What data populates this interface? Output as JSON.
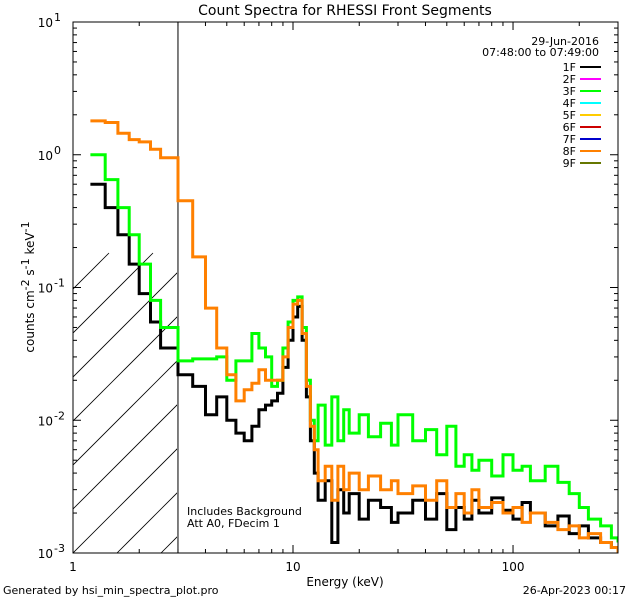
{
  "chart_data": {
    "type": "line",
    "title": "Count Spectra for RHESSI Front Segments",
    "xlabel": "Energy (keV)",
    "ylabel": "counts cm",
    "ylabel_sup1": "-2",
    "ylabel_mid": " s",
    "ylabel_sup2": "-1",
    "ylabel_end": " keV",
    "ylabel_sup3": "-1",
    "xscale": "log",
    "yscale": "log",
    "xlim": [
      1,
      300
    ],
    "ylim": [
      0.001,
      10
    ],
    "x_ticks": [
      {
        "value": 1,
        "label": "1"
      },
      {
        "value": 10,
        "label": "10"
      },
      {
        "value": 100,
        "label": "100"
      }
    ],
    "y_ticks": [
      {
        "value": 0.001,
        "base": "10",
        "exp": "-3"
      },
      {
        "value": 0.01,
        "base": "10",
        "exp": "-2"
      },
      {
        "value": 0.1,
        "base": "10",
        "exp": "-1"
      },
      {
        "value": 1,
        "base": "10",
        "exp": "0"
      },
      {
        "value": 10,
        "base": "10",
        "exp": "1"
      }
    ],
    "date": "29-Jun-2016",
    "time_range": "07:48:00 to 07:49:00",
    "excluded_region_max_keV": 3,
    "annotations": [
      "Includes Background",
      "Att A0, FDecim 1"
    ],
    "legend": [
      {
        "label": "1F",
        "color": "#000000"
      },
      {
        "label": "2F",
        "color": "#ff00ff"
      },
      {
        "label": "3F",
        "color": "#00ff00"
      },
      {
        "label": "4F",
        "color": "#00ffff"
      },
      {
        "label": "5F",
        "color": "#ffcc00"
      },
      {
        "label": "6F",
        "color": "#cc0000"
      },
      {
        "label": "7F",
        "color": "#0000cc"
      },
      {
        "label": "8F",
        "color": "#ff8000"
      },
      {
        "label": "9F",
        "color": "#667700"
      }
    ],
    "series": [
      {
        "name": "1F",
        "color": "#000000",
        "points": [
          [
            1.2,
            0.6
          ],
          [
            1.4,
            0.4
          ],
          [
            1.6,
            0.25
          ],
          [
            1.8,
            0.15
          ],
          [
            2.0,
            0.09
          ],
          [
            2.25,
            0.055
          ],
          [
            2.5,
            0.035
          ],
          [
            3.0,
            0.022
          ],
          [
            3.5,
            0.018
          ],
          [
            4.0,
            0.011
          ],
          [
            4.5,
            0.015
          ],
          [
            5.0,
            0.01
          ],
          [
            5.5,
            0.008
          ],
          [
            6.0,
            0.007
          ],
          [
            6.5,
            0.009
          ],
          [
            7.0,
            0.012
          ],
          [
            7.5,
            0.013
          ],
          [
            8.0,
            0.014
          ],
          [
            8.5,
            0.016
          ],
          [
            9.0,
            0.025
          ],
          [
            9.5,
            0.04
          ],
          [
            10.0,
            0.06
          ],
          [
            10.5,
            0.072
          ],
          [
            11.0,
            0.04
          ],
          [
            11.5,
            0.015
          ],
          [
            12.0,
            0.007
          ],
          [
            12.5,
            0.004
          ],
          [
            13.0,
            0.0025
          ],
          [
            14.0,
            0.0035
          ],
          [
            15.0,
            0.0012
          ],
          [
            16.0,
            0.003
          ],
          [
            17.0,
            0.002
          ],
          [
            18.0,
            0.0028
          ],
          [
            20.0,
            0.0018
          ],
          [
            22.0,
            0.0025
          ],
          [
            25.0,
            0.0022
          ],
          [
            28.0,
            0.0017
          ],
          [
            30.0,
            0.002
          ],
          [
            35.0,
            0.0025
          ],
          [
            40.0,
            0.0018
          ],
          [
            45.0,
            0.0028
          ],
          [
            50.0,
            0.0015
          ],
          [
            55.0,
            0.0022
          ],
          [
            60.0,
            0.0018
          ],
          [
            65.0,
            0.0025
          ],
          [
            70.0,
            0.002
          ],
          [
            80.0,
            0.0026
          ],
          [
            90.0,
            0.0021
          ],
          [
            100.0,
            0.0018
          ],
          [
            110.0,
            0.0024
          ],
          [
            120.0,
            0.002
          ],
          [
            140.0,
            0.0016
          ],
          [
            160.0,
            0.0019
          ],
          [
            180.0,
            0.0014
          ],
          [
            200.0,
            0.0016
          ],
          [
            220.0,
            0.0013
          ],
          [
            250.0,
            0.0012
          ],
          [
            280.0,
            0.0011
          ],
          [
            300.0,
            0.001
          ]
        ]
      },
      {
        "name": "3F",
        "color": "#00ff00",
        "points": [
          [
            1.2,
            1.0
          ],
          [
            1.4,
            0.65
          ],
          [
            1.6,
            0.4
          ],
          [
            1.8,
            0.25
          ],
          [
            2.0,
            0.15
          ],
          [
            2.25,
            0.08
          ],
          [
            2.5,
            0.05
          ],
          [
            3.0,
            0.028
          ],
          [
            3.5,
            0.029
          ],
          [
            4.0,
            0.029
          ],
          [
            4.5,
            0.03
          ],
          [
            5.0,
            0.02
          ],
          [
            5.5,
            0.028
          ],
          [
            6.0,
            0.028
          ],
          [
            6.5,
            0.045
          ],
          [
            7.0,
            0.035
          ],
          [
            7.5,
            0.03
          ],
          [
            8.0,
            0.018
          ],
          [
            8.5,
            0.02
          ],
          [
            9.0,
            0.035
          ],
          [
            9.5,
            0.055
          ],
          [
            10.0,
            0.08
          ],
          [
            10.5,
            0.085
          ],
          [
            11.0,
            0.05
          ],
          [
            11.5,
            0.02
          ],
          [
            12.0,
            0.01
          ],
          [
            12.5,
            0.007
          ],
          [
            13.0,
            0.013
          ],
          [
            14.0,
            0.0065
          ],
          [
            15.0,
            0.015
          ],
          [
            16.0,
            0.007
          ],
          [
            17.0,
            0.012
          ],
          [
            18.0,
            0.008
          ],
          [
            20.0,
            0.011
          ],
          [
            22.0,
            0.0075
          ],
          [
            25.0,
            0.0095
          ],
          [
            28.0,
            0.0065
          ],
          [
            30.0,
            0.011
          ],
          [
            35.0,
            0.007
          ],
          [
            40.0,
            0.0085
          ],
          [
            45.0,
            0.0055
          ],
          [
            50.0,
            0.009
          ],
          [
            55.0,
            0.0045
          ],
          [
            60.0,
            0.0055
          ],
          [
            65.0,
            0.0042
          ],
          [
            70.0,
            0.005
          ],
          [
            80.0,
            0.0038
          ],
          [
            90.0,
            0.0055
          ],
          [
            100.0,
            0.0042
          ],
          [
            110.0,
            0.0045
          ],
          [
            120.0,
            0.0035
          ],
          [
            140.0,
            0.0045
          ],
          [
            160.0,
            0.0034
          ],
          [
            180.0,
            0.0028
          ],
          [
            200.0,
            0.0022
          ],
          [
            220.0,
            0.0018
          ],
          [
            250.0,
            0.0016
          ],
          [
            280.0,
            0.0013
          ],
          [
            300.0,
            0.0012
          ]
        ]
      },
      {
        "name": "8F",
        "color": "#ff8000",
        "points": [
          [
            1.2,
            1.8
          ],
          [
            1.4,
            1.75
          ],
          [
            1.6,
            1.45
          ],
          [
            1.8,
            1.3
          ],
          [
            2.0,
            1.25
          ],
          [
            2.25,
            1.1
          ],
          [
            2.5,
            0.95
          ],
          [
            3.0,
            0.45
          ],
          [
            3.5,
            0.17
          ],
          [
            4.0,
            0.07
          ],
          [
            4.5,
            0.035
          ],
          [
            5.0,
            0.022
          ],
          [
            5.5,
            0.014
          ],
          [
            6.0,
            0.017
          ],
          [
            6.5,
            0.019
          ],
          [
            7.0,
            0.024
          ],
          [
            7.5,
            0.02
          ],
          [
            8.0,
            0.02
          ],
          [
            8.5,
            0.02
          ],
          [
            9.0,
            0.03
          ],
          [
            9.5,
            0.05
          ],
          [
            10.0,
            0.075
          ],
          [
            10.5,
            0.08
          ],
          [
            11.0,
            0.045
          ],
          [
            11.5,
            0.018
          ],
          [
            12.0,
            0.009
          ],
          [
            12.5,
            0.006
          ],
          [
            13.0,
            0.0035
          ],
          [
            14.0,
            0.0045
          ],
          [
            15.0,
            0.0025
          ],
          [
            16.0,
            0.0045
          ],
          [
            17.0,
            0.003
          ],
          [
            18.0,
            0.004
          ],
          [
            20.0,
            0.003
          ],
          [
            22.0,
            0.0038
          ],
          [
            25.0,
            0.003
          ],
          [
            28.0,
            0.0035
          ],
          [
            30.0,
            0.0028
          ],
          [
            35.0,
            0.0032
          ],
          [
            40.0,
            0.0025
          ],
          [
            45.0,
            0.0035
          ],
          [
            50.0,
            0.0022
          ],
          [
            55.0,
            0.0028
          ],
          [
            60.0,
            0.002
          ],
          [
            65.0,
            0.003
          ],
          [
            70.0,
            0.0022
          ],
          [
            80.0,
            0.0024
          ],
          [
            90.0,
            0.002
          ],
          [
            100.0,
            0.0022
          ],
          [
            110.0,
            0.0017
          ],
          [
            120.0,
            0.002
          ],
          [
            140.0,
            0.0017
          ],
          [
            160.0,
            0.0015
          ],
          [
            180.0,
            0.0016
          ],
          [
            200.0,
            0.0013
          ],
          [
            220.0,
            0.0014
          ],
          [
            250.0,
            0.0012
          ],
          [
            280.0,
            0.0011
          ],
          [
            300.0,
            0.001
          ]
        ]
      }
    ]
  },
  "footer": {
    "generated_by": "Generated by hsi_min_spectra_plot.pro",
    "timestamp": "26-Apr-2023 00:17"
  }
}
